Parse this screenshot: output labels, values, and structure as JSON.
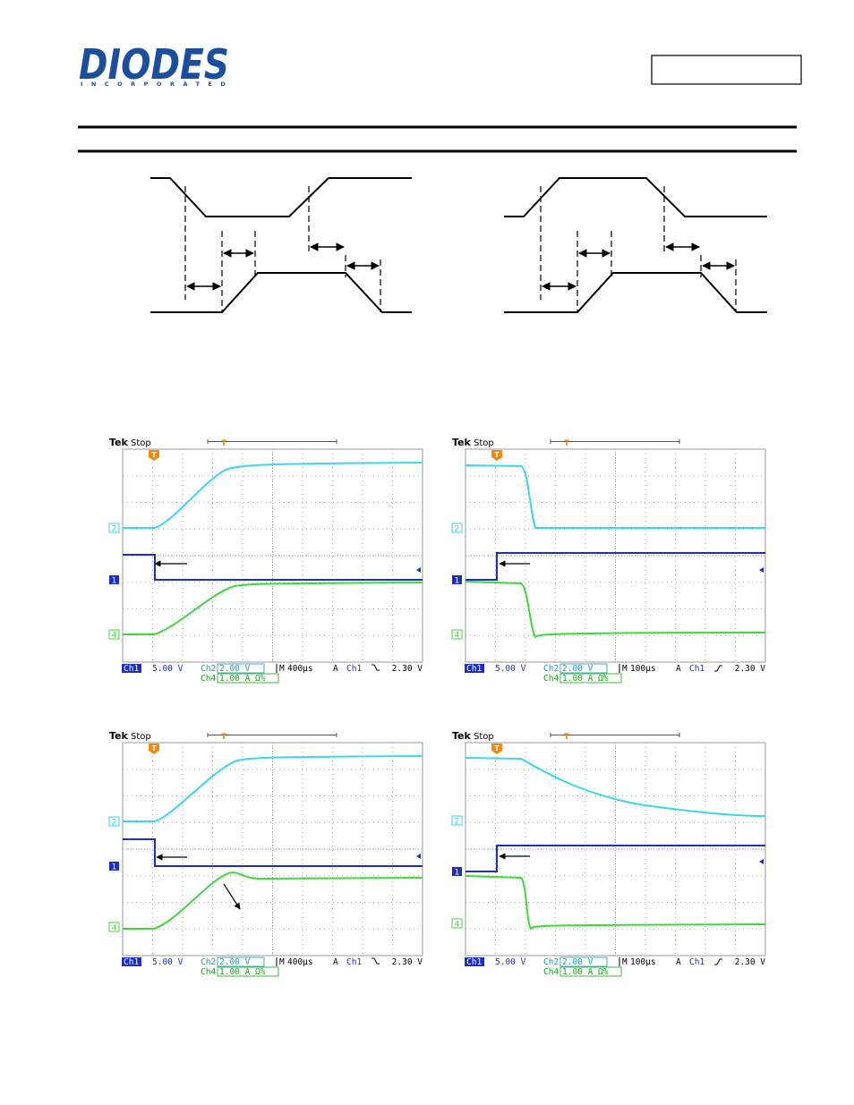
{
  "header": {
    "logo": "DIODES",
    "logo_sub": "INCORPORATED"
  },
  "scopes": [
    {
      "brand": "Tek",
      "state": "Stop",
      "trigger_marker": "T",
      "ch_markers": [
        "2",
        "1",
        "4"
      ],
      "status": {
        "ch1": "Ch1",
        "ch1_scale": "5.00 V",
        "ch2": "Ch2",
        "ch2_scale": "2.00 V",
        "m": "M",
        "timebase": "400µs",
        "trigger_mode": "A",
        "trigger_source": "Ch1",
        "trigger_level": "2.30 V",
        "ch4": "Ch4",
        "ch4_scale": "1.00 A Ω%"
      }
    },
    {
      "brand": "Tek",
      "state": "Stop",
      "trigger_marker": "T",
      "ch_markers": [
        "2",
        "1",
        "4"
      ],
      "status": {
        "ch1": "Ch1",
        "ch1_scale": "5.00 V",
        "ch2": "Ch2",
        "ch2_scale": "2.00 V",
        "m": "M",
        "timebase": "100µs",
        "trigger_mode": "A",
        "trigger_source": "Ch1",
        "trigger_level": "2.30 V",
        "ch4": "Ch4",
        "ch4_scale": "1.00 A Ω%"
      }
    },
    {
      "brand": "Tek",
      "state": "Stop",
      "trigger_marker": "T",
      "ch_markers": [
        "2",
        "1",
        "4"
      ],
      "status": {
        "ch1": "Ch1",
        "ch1_scale": "5.00 V",
        "ch2": "Ch2",
        "ch2_scale": "2.00 V",
        "m": "M",
        "timebase": "400µs",
        "trigger_mode": "A",
        "trigger_source": "Ch1",
        "trigger_level": "2.30 V",
        "ch4": "Ch4",
        "ch4_scale": "1.00 A Ω%"
      }
    },
    {
      "brand": "Tek",
      "state": "Stop",
      "trigger_marker": "T",
      "ch_markers": [
        "2",
        "1",
        "4"
      ],
      "status": {
        "ch1": "Ch1",
        "ch1_scale": "5.00 V",
        "ch2": "Ch2",
        "ch2_scale": "2.00 V",
        "m": "M",
        "timebase": "100µs",
        "trigger_mode": "A",
        "trigger_source": "Ch1",
        "trigger_level": "2.30 V",
        "ch4": "Ch4",
        "ch4_scale": "1.00 A Ω%"
      }
    }
  ]
}
